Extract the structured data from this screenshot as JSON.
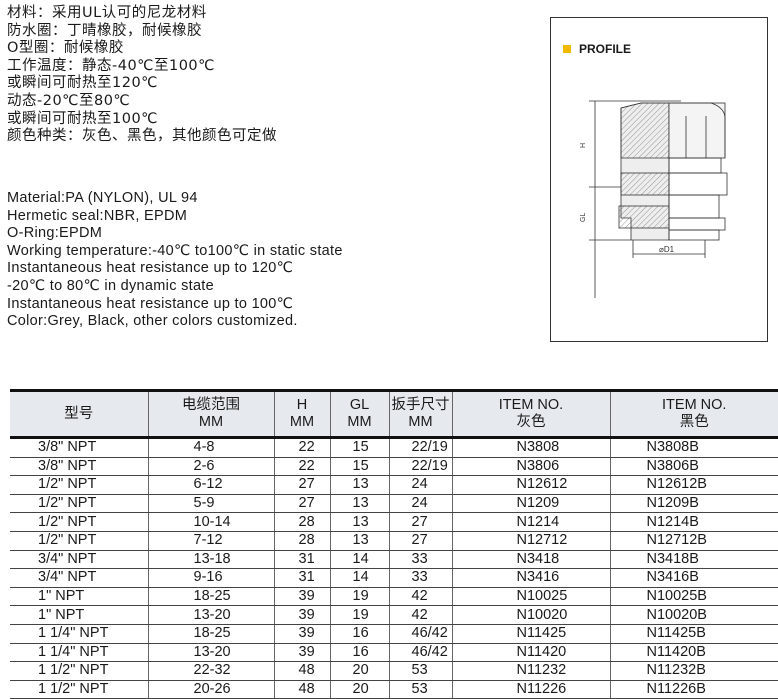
{
  "chinese_spec": [
    "材料：采用UL认可的尼龙材料",
    "防水圈：丁晴橡胶，耐候橡胶",
    "O型圈：耐候橡胶",
    "工作温度：静态-40℃至100℃",
    "或瞬间可耐热至120℃",
    "动态-20℃至80℃",
    "或瞬间可耐热至100℃",
    "颜色种类：灰色、黑色，其他颜色可定做"
  ],
  "english_spec": [
    "Material:PA (NYLON), UL 94",
    "Hermetic seal:NBR, EPDM",
    "O-Ring:EPDM",
    "Working temperature:-40℃ to100℃ in static state",
    "Instantaneous heat resistance up to 120℃",
    "-20℃ to 80℃ in dynamic state",
    "Instantaneous heat resistance up to 100℃",
    "Color:Grey, Black, other colors customized."
  ],
  "profile": {
    "title": "PROFILE",
    "accent": "#f5b800",
    "labels": {
      "h": "H",
      "gl": "GL",
      "d1": "⌀D1"
    }
  },
  "table": {
    "headers": [
      [
        "型号",
        ""
      ],
      [
        "电缆范围",
        "MM"
      ],
      [
        "H",
        "MM"
      ],
      [
        "GL",
        "MM"
      ],
      [
        "扳手尺寸",
        "MM"
      ],
      [
        "ITEM NO.",
        "灰色"
      ],
      [
        "ITEM NO.",
        "黑色"
      ]
    ],
    "rows": [
      [
        "3/8\" NPT",
        "4-8",
        "22",
        "15",
        "22/19",
        "N3808",
        "N3808B"
      ],
      [
        "3/8\" NPT",
        "2-6",
        "22",
        "15",
        "22/19",
        "N3806",
        "N3806B"
      ],
      [
        "1/2\" NPT",
        "6-12",
        "27",
        "13",
        "24",
        "N12612",
        "N12612B"
      ],
      [
        "1/2\" NPT",
        "5-9",
        "27",
        "13",
        "24",
        "N1209",
        "N1209B"
      ],
      [
        "1/2\" NPT",
        "10-14",
        "28",
        "13",
        "27",
        "N1214",
        "N1214B"
      ],
      [
        "1/2\" NPT",
        "7-12",
        "28",
        "13",
        "27",
        "N12712",
        "N12712B"
      ],
      [
        "3/4\" NPT",
        "13-18",
        "31",
        "14",
        "33",
        "N3418",
        "N3418B"
      ],
      [
        "3/4\" NPT",
        "9-16",
        "31",
        "14",
        "33",
        "N3416",
        "N3416B"
      ],
      [
        "1\" NPT",
        "18-25",
        "39",
        "19",
        "42",
        "N10025",
        "N10025B"
      ],
      [
        "1\" NPT",
        "13-20",
        "39",
        "19",
        "42",
        "N10020",
        "N10020B"
      ],
      [
        "1 1/4\" NPT",
        "18-25",
        "39",
        "16",
        "46/42",
        "N11425",
        "N11425B"
      ],
      [
        "1 1/4\" NPT",
        "13-20",
        "39",
        "16",
        "46/42",
        "N11420",
        "N11420B"
      ],
      [
        "1 1/2\" NPT",
        "22-32",
        "48",
        "20",
        "53",
        "N11232",
        "N11232B"
      ],
      [
        "1 1/2\" NPT",
        "20-26",
        "48",
        "20",
        "53",
        "N11226",
        "N11226B"
      ]
    ]
  }
}
